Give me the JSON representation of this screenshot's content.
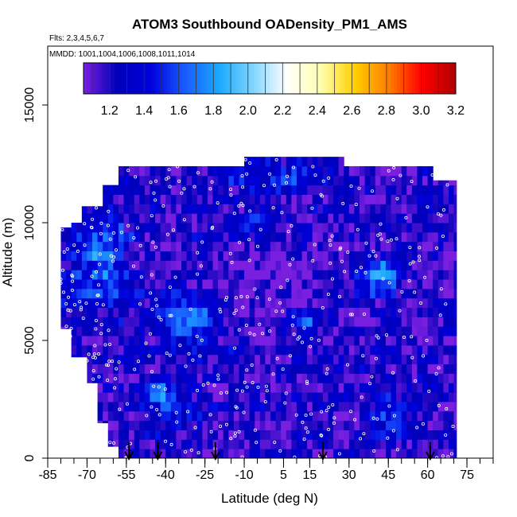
{
  "chart_data": {
    "type": "heatmap",
    "title": "ATOM3 Southbound OADensity_PM1_AMS",
    "flights_note": "Flts: 2,3,4,5,6,7",
    "dates_note": "MMDD: 1001,1004,1006,1008,1011,1014",
    "xlabel": "Latitude (deg N)",
    "ylabel": "Altitude (m)",
    "xlim": [
      -85,
      85
    ],
    "ylim": [
      0,
      17500
    ],
    "x_ticks": [
      -85,
      -70,
      -55,
      -40,
      -25,
      -10,
      5,
      15,
      30,
      45,
      60,
      75
    ],
    "y_ticks": [
      0,
      5000,
      10000,
      15000
    ],
    "colorbar": {
      "min": 1.05,
      "max": 3.2,
      "tick_values": [
        1.2,
        1.4,
        1.6,
        1.8,
        2.0,
        2.2,
        2.4,
        2.6,
        2.8,
        3.0,
        3.2
      ],
      "tick_labels": [
        "1.2",
        "1.4",
        "1.6",
        "1.8",
        "2.0",
        "2.2",
        "2.4",
        "2.6",
        "2.8",
        "3.0",
        "3.2"
      ],
      "colors": [
        "#7a1fe0",
        "#0000b8",
        "#0000dd",
        "#1a5cff",
        "#1aa8ff",
        "#7fd4ff",
        "#ffffff",
        "#ffffb0",
        "#ffd000",
        "#ff8000",
        "#ff0000",
        "#b00000"
      ]
    },
    "arrow_latitudes": [
      -54,
      -43,
      -21,
      20,
      61
    ],
    "region": {
      "lat_min": -80,
      "lat_max": 71,
      "alt_min": 0,
      "alt_max": 12800
    },
    "sample_cells": [
      {
        "lat": -78,
        "alt": 9000,
        "value": 1.8
      },
      {
        "lat": -70,
        "alt": 8000,
        "value": 1.6
      },
      {
        "lat": -60,
        "alt": 7000,
        "value": 1.9
      },
      {
        "lat": -50,
        "alt": 6000,
        "value": 1.7
      },
      {
        "lat": -35,
        "alt": 5500,
        "value": 2.0
      },
      {
        "lat": -25,
        "alt": 5800,
        "value": 2.1
      },
      {
        "lat": -40,
        "alt": 2500,
        "value": 1.8
      },
      {
        "lat": 10,
        "alt": 5800,
        "value": 1.7
      },
      {
        "lat": 40,
        "alt": 8000,
        "value": 2.1
      },
      {
        "lat": 45,
        "alt": 1800,
        "value": 1.9
      },
      {
        "lat": 0,
        "alt": 12000,
        "value": 1.6
      },
      {
        "lat": 30,
        "alt": 11500,
        "value": 1.5
      }
    ]
  }
}
